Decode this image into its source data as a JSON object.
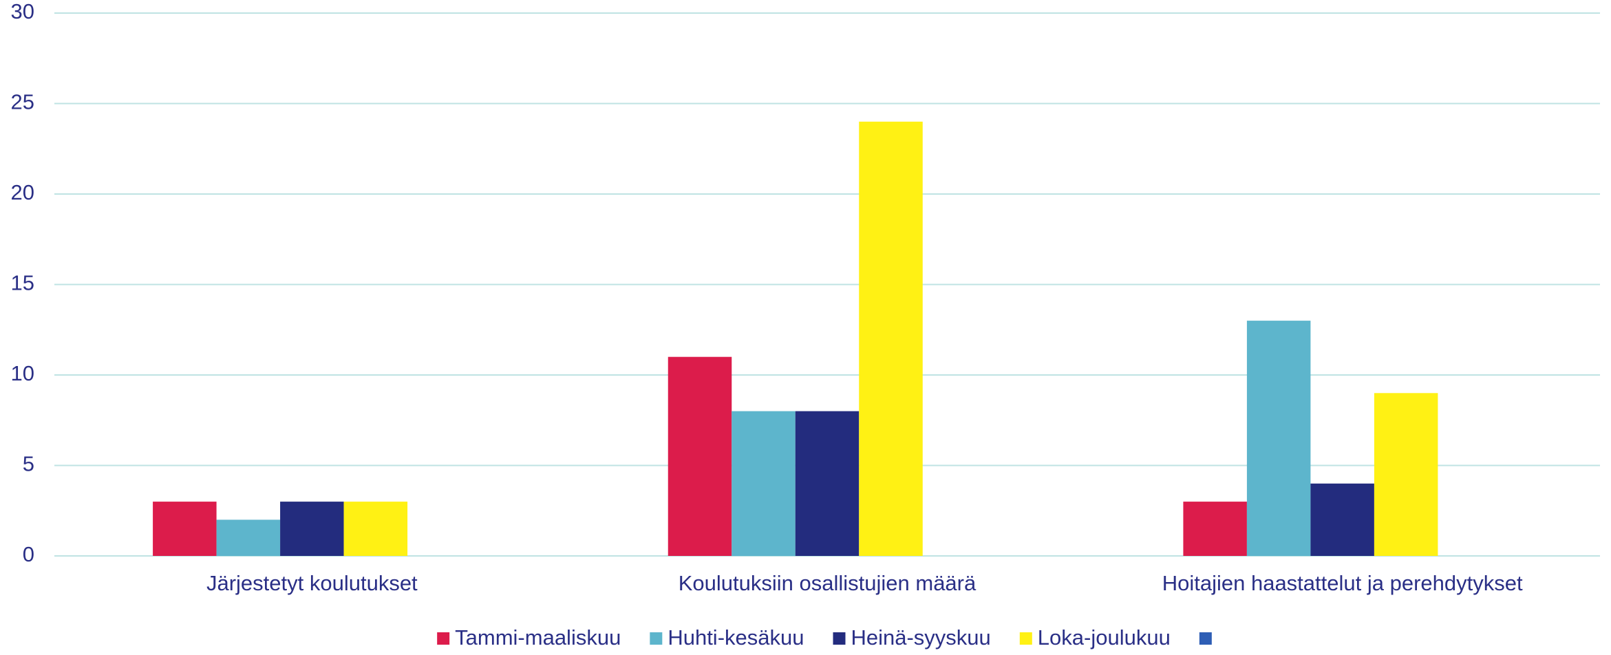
{
  "chart_data": {
    "type": "bar",
    "categories": [
      "Järjestetyt koulutukset",
      "Koulutuksiin osallistujien määrä",
      "Hoitajien haastattelut ja perehdytykset"
    ],
    "series": [
      {
        "name": "Tammi-maaliskuu",
        "color": "#dc1c4b",
        "values": [
          3,
          11,
          3
        ]
      },
      {
        "name": "Huhti-kesäkuu",
        "color": "#5db5cc",
        "values": [
          2,
          8,
          13
        ]
      },
      {
        "name": "Heinä-syyskuu",
        "color": "#232c7e",
        "values": [
          3,
          8,
          4
        ]
      },
      {
        "name": "Loka-joulukuu",
        "color": "#fff114",
        "values": [
          3,
          24,
          9
        ]
      },
      {
        "name": null,
        "color": "#2e5eb5",
        "values": [
          null,
          null,
          null
        ]
      }
    ],
    "ylim": [
      0,
      30
    ],
    "yticks": [
      0,
      5,
      10,
      15,
      20,
      25,
      30
    ],
    "grid": true,
    "legend": "bottom"
  }
}
